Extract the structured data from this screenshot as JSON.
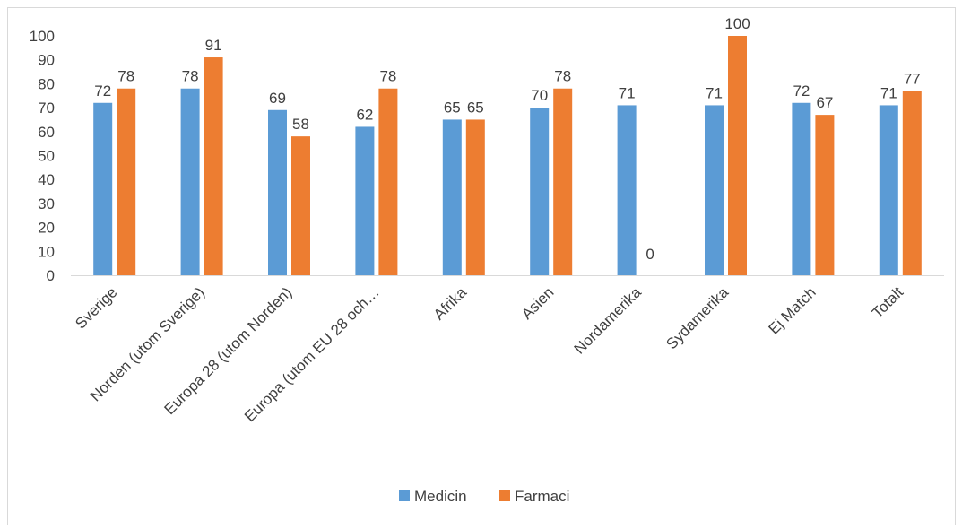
{
  "chart_data": {
    "type": "bar",
    "categories": [
      "Sverige",
      "Norden (utom Sverige)",
      "Europa 28 (utom Norden)",
      "Europa (utom EU 28 och…",
      "Afrika",
      "Asien",
      "Nordamerika",
      "Sydamerika",
      "Ej Match",
      "Totalt"
    ],
    "series": [
      {
        "name": "Medicin",
        "color": "#5b9bd5",
        "values": [
          72,
          78,
          69,
          62,
          65,
          70,
          71,
          71,
          72,
          71
        ],
        "labels": [
          "72",
          "78",
          "69",
          "62",
          "65",
          "70",
          "71",
          "71",
          "72",
          "71"
        ]
      },
      {
        "name": "Farmaci",
        "color": "#ed7d31",
        "values": [
          78,
          91,
          58,
          78,
          65,
          78,
          0,
          100,
          67,
          77
        ],
        "labels": [
          "78",
          "91",
          "58",
          "78",
          "65",
          "78",
          "0",
          "100",
          "67",
          "77"
        ]
      }
    ],
    "title": "",
    "xlabel": "",
    "ylabel": "",
    "ylim": [
      0,
      100
    ],
    "yticks": [
      0,
      10,
      20,
      30,
      40,
      50,
      60,
      70,
      80,
      90,
      100
    ],
    "grid": false,
    "legend": "bottom-center"
  }
}
